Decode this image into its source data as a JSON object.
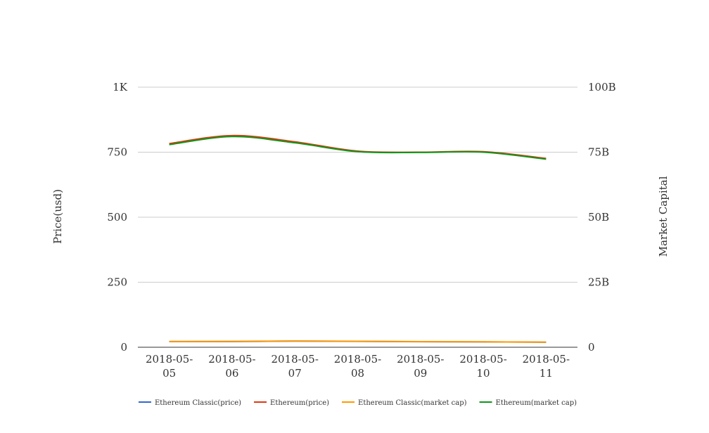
{
  "chart_data": {
    "type": "line",
    "title": "",
    "x": [
      "2018-05-05",
      "2018-05-06",
      "2018-05-07",
      "2018-05-08",
      "2018-05-09",
      "2018-05-10",
      "2018-05-11"
    ],
    "x_tick_labels": [
      [
        "2018-05-",
        "05"
      ],
      [
        "2018-05-",
        "06"
      ],
      [
        "2018-05-",
        "07"
      ],
      [
        "2018-05-",
        "08"
      ],
      [
        "2018-05-",
        "09"
      ],
      [
        "2018-05-",
        "10"
      ],
      [
        "2018-05-",
        "11"
      ]
    ],
    "ylabel": "Price(usd)",
    "y2label": "Market Capital",
    "ylim": [
      0,
      1000
    ],
    "y2lim": [
      0,
      100000000000
    ],
    "y_ticks": [
      {
        "value": 0,
        "label": "0"
      },
      {
        "value": 250,
        "label": "250"
      },
      {
        "value": 500,
        "label": "500"
      },
      {
        "value": 750,
        "label": "750"
      },
      {
        "value": 1000,
        "label": "1K"
      }
    ],
    "y2_ticks": [
      {
        "value": 0,
        "label": "0"
      },
      {
        "value": 25000000000,
        "label": "25B"
      },
      {
        "value": 50000000000,
        "label": "50B"
      },
      {
        "value": 75000000000,
        "label": "75B"
      },
      {
        "value": 100000000000,
        "label": "100B"
      }
    ],
    "grid": true,
    "legend_position": "bottom",
    "series": [
      {
        "name": "Ethereum Classic(price)",
        "axis": "left",
        "color": "#3366cc",
        "values": [
          21.8,
          22.0,
          23.6,
          22.6,
          21.4,
          20.6,
          19.4
        ]
      },
      {
        "name": "Ethereum(price)",
        "axis": "right",
        "color": "#dc3912",
        "values": [
          78300000000,
          81400000000,
          79000000000,
          75400000000,
          75000000000,
          75200000000,
          72600000000
        ]
      },
      {
        "name": "Ethereum Classic(market cap)",
        "axis": "right",
        "color": "#ff9900",
        "values": [
          2200000000,
          2250000000,
          2400000000,
          2300000000,
          2170000000,
          2080000000,
          1960000000
        ]
      },
      {
        "name": "Ethereum(market cap)",
        "axis": "left",
        "color": "#109618",
        "values": [
          779,
          810,
          786,
          752,
          749,
          750,
          723
        ]
      }
    ]
  }
}
